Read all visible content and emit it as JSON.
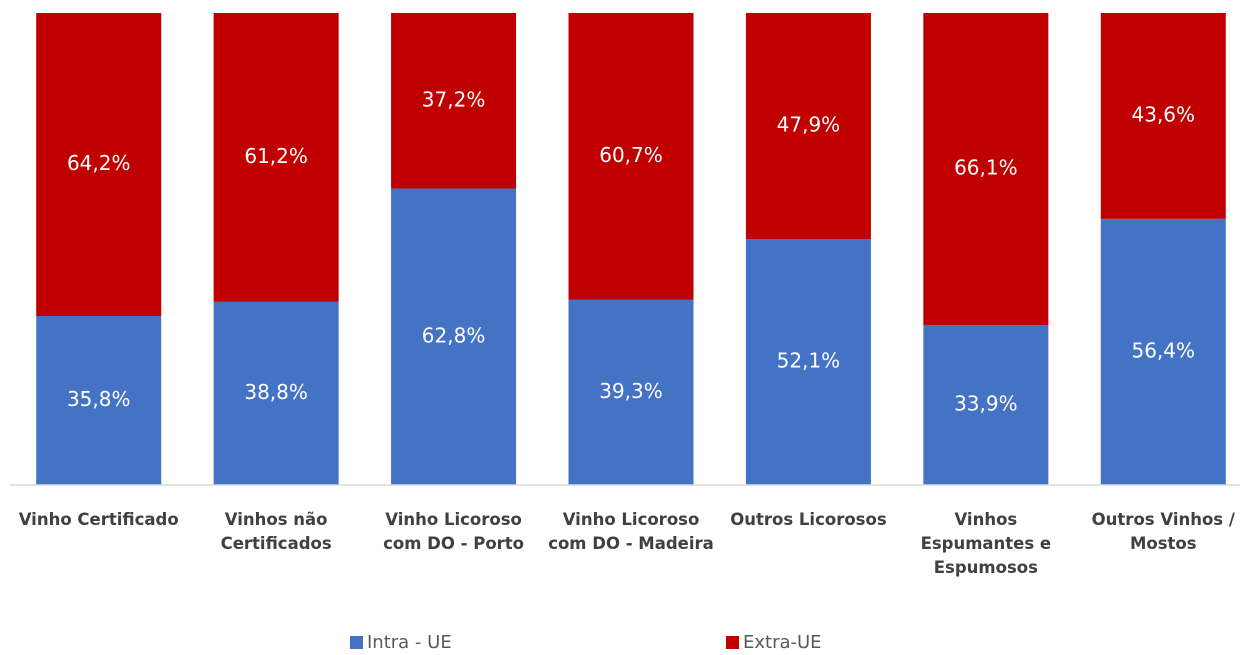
{
  "chart_data": {
    "type": "stacked_bar",
    "categories": [
      "Vinho Certificado",
      "Vinhos não Certificados",
      "Vinho Licoroso com DO - Porto",
      "Vinho Licoroso com DO - Madeira",
      "Outros Licorosos",
      "Vinhos Espumantes e Espumosos",
      "Outros Vinhos / Mostos"
    ],
    "series": [
      {
        "name": "Intra - UE",
        "color": "#4472c4",
        "values": [
          35.8,
          38.8,
          62.8,
          39.3,
          52.1,
          33.9,
          56.4
        ],
        "value_labels": [
          "35,8%",
          "38,8%",
          "62,8%",
          "39,3%",
          "52,1%",
          "33,9%",
          "56,4%"
        ]
      },
      {
        "name": "Extra-UE",
        "color": "#c00000",
        "values": [
          64.2,
          61.2,
          37.2,
          60.7,
          47.9,
          66.1,
          43.6
        ],
        "value_labels": [
          "64,2%",
          "61,2%",
          "37,2%",
          "60,7%",
          "47,9%",
          "66,1%",
          "43,6%"
        ]
      }
    ],
    "ylim": [
      0,
      100
    ],
    "legend": "bottom"
  }
}
